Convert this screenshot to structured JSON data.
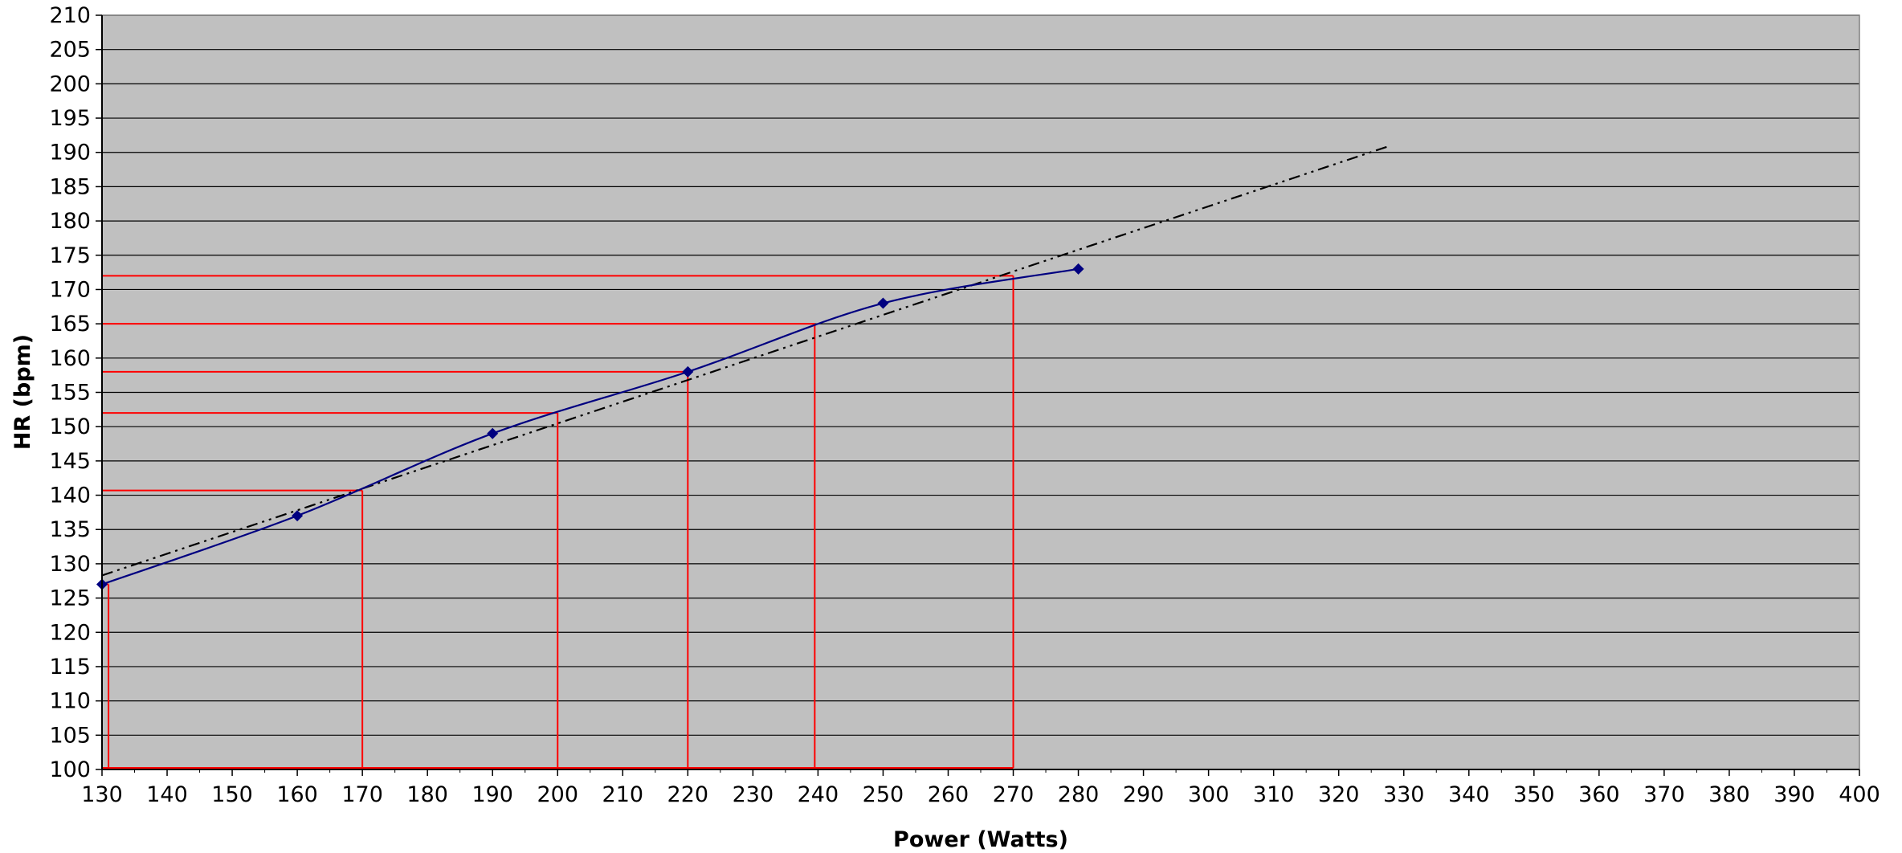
{
  "chart_data": {
    "type": "line",
    "title": "",
    "xlabel": "Power (Watts)",
    "ylabel": "HR (bpm)",
    "xlim": [
      130,
      400
    ],
    "ylim": [
      100,
      210
    ],
    "x_ticks": [
      130,
      140,
      150,
      160,
      170,
      180,
      190,
      200,
      210,
      220,
      230,
      240,
      250,
      260,
      270,
      280,
      290,
      300,
      310,
      320,
      330,
      340,
      350,
      360,
      370,
      380,
      390,
      400
    ],
    "y_ticks": [
      100,
      105,
      110,
      115,
      120,
      125,
      130,
      135,
      140,
      145,
      150,
      155,
      160,
      165,
      170,
      175,
      180,
      185,
      190,
      195,
      200,
      205,
      210
    ],
    "grid": "horizontal",
    "plot_background": "#c0c0c0",
    "series": [
      {
        "style": "smoothed line with diamond markers",
        "color": "#000080",
        "x": [
          130,
          160,
          190,
          220,
          250,
          280
        ],
        "y": [
          127,
          137,
          149,
          158,
          168,
          173
        ]
      },
      {
        "style": "dash-dot-dot linear trendline",
        "color": "#000000",
        "x": [
          130,
          328
        ],
        "y": [
          128.3,
          191
        ]
      }
    ],
    "reference_lines": {
      "color": "#ff0000",
      "points": [
        {
          "x": 131,
          "y": 127
        },
        {
          "x": 170,
          "y": 140.7
        },
        {
          "x": 200,
          "y": 152
        },
        {
          "x": 220,
          "y": 158
        },
        {
          "x": 239.5,
          "y": 165
        },
        {
          "x": 270,
          "y": 172
        }
      ]
    }
  }
}
